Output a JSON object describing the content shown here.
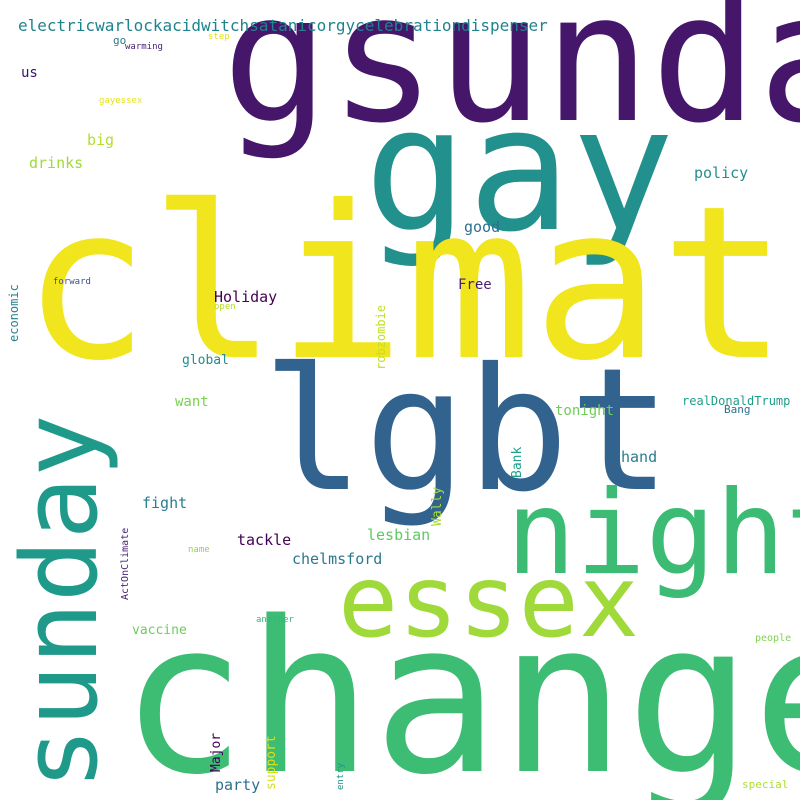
{
  "words": {
    "climate": {
      "text": "climate",
      "color": "#f1e51d"
    },
    "gsunday": {
      "text": "gsunday",
      "color": "#46166b"
    },
    "gay": {
      "text": "gay",
      "color": "#22908c"
    },
    "lgbt": {
      "text": "lgbt",
      "color": "#31638e"
    },
    "sunday": {
      "text": "sunday",
      "color": "#1f9a8a"
    },
    "change": {
      "text": "change",
      "color": "#3dbc74"
    },
    "night": {
      "text": "night",
      "color": "#3cbb75"
    },
    "essex": {
      "text": "essex",
      "color": "#9fda3a"
    },
    "electric": {
      "text": "electricwarlockacidwitchsatanicorgycelebrationdispenser",
      "color": "#1f838e"
    },
    "go": {
      "text": "go",
      "color": "#2a788e"
    },
    "warming": {
      "text": "warming",
      "color": "#482374"
    },
    "step": {
      "text": "step",
      "color": "#e2e418"
    },
    "us": {
      "text": "us",
      "color": "#3b0f70"
    },
    "gayessex": {
      "text": "gayessex",
      "color": "#e5e419"
    },
    "big": {
      "text": "big",
      "color": "#b5de2b"
    },
    "drinks": {
      "text": "drinks",
      "color": "#a0da39"
    },
    "policy": {
      "text": "policy",
      "color": "#21918c"
    },
    "good": {
      "text": "good",
      "color": "#2c718e"
    },
    "economic": {
      "text": "economic",
      "color": "#25838e"
    },
    "forward": {
      "text": "forward",
      "color": "#3b528b"
    },
    "holiday": {
      "text": "Holiday",
      "color": "#440154"
    },
    "open": {
      "text": "open",
      "color": "#b8de29"
    },
    "free": {
      "text": "Free",
      "color": "#481f70"
    },
    "robzombie": {
      "text": "robzombie",
      "color": "#c2df23"
    },
    "global": {
      "text": "global",
      "color": "#218e8d"
    },
    "want": {
      "text": "want",
      "color": "#7ad151"
    },
    "realdonaldtrump": {
      "text": "realDonaldTrump",
      "color": "#1f9e89"
    },
    "bang": {
      "text": "Bang",
      "color": "#2c728e"
    },
    "tonight": {
      "text": "tonight",
      "color": "#6ece58"
    },
    "bank": {
      "text": "Bank",
      "color": "#1fa188"
    },
    "hand": {
      "text": "hand",
      "color": "#287c8e"
    },
    "fight": {
      "text": "fight",
      "color": "#27808e"
    },
    "wally": {
      "text": "Wally",
      "color": "#a2da37"
    },
    "actonclimate": {
      "text": "ActOnClimate",
      "color": "#482475"
    },
    "name": {
      "text": "name",
      "color": "#8ed645"
    },
    "tackle": {
      "text": "tackle",
      "color": "#440154"
    },
    "lesbian": {
      "text": "lesbian",
      "color": "#5ec962"
    },
    "chelmsford": {
      "text": "chelmsford",
      "color": "#2a788e"
    },
    "another": {
      "text": "another",
      "color": "#35b779"
    },
    "vaccine": {
      "text": "vaccine",
      "color": "#6ccd5a"
    },
    "people": {
      "text": "people",
      "color": "#7fd34e"
    },
    "major": {
      "text": "Major",
      "color": "#440154"
    },
    "support": {
      "text": "support",
      "color": "#d8e219"
    },
    "party": {
      "text": "party",
      "color": "#2d708e"
    },
    "entry": {
      "text": "entry",
      "color": "#20928c"
    },
    "special": {
      "text": "special",
      "color": "#b0dd2f"
    }
  }
}
